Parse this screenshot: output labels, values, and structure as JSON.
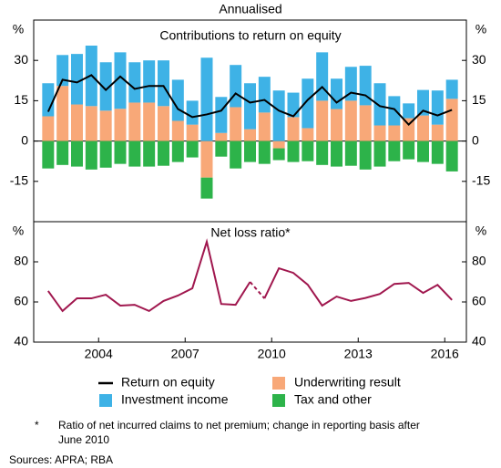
{
  "title": "Annualised",
  "y_unit": "%",
  "chart_data": [
    {
      "type": "bar",
      "title": "Contributions to return on equity",
      "stacked": true,
      "zero_line": true,
      "x": [
        2002.75,
        2003.25,
        2003.75,
        2004.25,
        2004.75,
        2005.25,
        2005.75,
        2006.25,
        2006.75,
        2007.25,
        2007.75,
        2008.25,
        2008.75,
        2009.25,
        2009.75,
        2010.25,
        2010.75,
        2011.25,
        2011.75,
        2012.25,
        2012.75,
        2013.25,
        2013.75,
        2014.25,
        2014.75,
        2015.25,
        2015.75,
        2016.25,
        2016.75
      ],
      "xlim": [
        2002.25,
        2017.25
      ],
      "xticks": [
        {
          "value": 2004.5,
          "label": "2004"
        },
        {
          "value": 2007.5,
          "label": "2007"
        },
        {
          "value": 2010.5,
          "label": "2010"
        },
        {
          "value": 2013.5,
          "label": "2013"
        },
        {
          "value": 2016.5,
          "label": "2016"
        }
      ],
      "ylim": [
        -30,
        45
      ],
      "yticks": [
        -15,
        0,
        15,
        30
      ],
      "series": [
        {
          "name": "Return on equity",
          "type": "line",
          "color": "#000000",
          "values": [
            10.9,
            22.8,
            21.8,
            24.5,
            19,
            24,
            19.4,
            20.5,
            20.5,
            11.9,
            8.9,
            9.9,
            11.3,
            17.7,
            14.3,
            15.3,
            11.3,
            9.2,
            15.3,
            20.1,
            14.3,
            18,
            17,
            13,
            11.9,
            6.1,
            11.3,
            9.5,
            11.6
          ]
        },
        {
          "name": "Underwriting result",
          "type": "bar",
          "color": "#f8a878",
          "values": [
            9.2,
            20.5,
            13.6,
            13,
            11.3,
            12,
            14.3,
            14.3,
            13,
            7.5,
            6.1,
            -13.6,
            3,
            12.6,
            4.4,
            10.6,
            -2.7,
            8.9,
            4.8,
            15,
            11.9,
            15,
            13.3,
            5.8,
            5.8,
            8.5,
            9.5,
            6.1,
            15.7
          ]
        },
        {
          "name": "Investment income",
          "type": "bar",
          "color": "#3eb2e6",
          "values": [
            12.3,
            11.5,
            18.8,
            22.5,
            18,
            21,
            15,
            15.7,
            17,
            15.3,
            8.9,
            31,
            13.4,
            15.7,
            17.1,
            13.3,
            18.8,
            9.1,
            18.4,
            18,
            11.3,
            12.6,
            14.7,
            15.7,
            10.9,
            5.5,
            9.5,
            12.7,
            7.1
          ]
        },
        {
          "name": "Tax and other",
          "type": "bar",
          "color": "#2db34a",
          "values": [
            -10.2,
            -8.9,
            -9.5,
            -10.6,
            -9.9,
            -8.5,
            -9.5,
            -9.5,
            -9.2,
            -7.8,
            -6.1,
            -7.8,
            -5.8,
            -10.2,
            -7.8,
            -8.5,
            -4.4,
            -7.8,
            -7.5,
            -8.9,
            -9.5,
            -9.2,
            -10.6,
            -9.5,
            -7.5,
            -6.8,
            -7.8,
            -8.5,
            -11.3
          ]
        }
      ]
    },
    {
      "type": "line",
      "title": "Net loss ratio*",
      "x": [
        2002.75,
        2003.25,
        2003.75,
        2004.25,
        2004.75,
        2005.25,
        2005.75,
        2006.25,
        2006.75,
        2007.25,
        2007.75,
        2008.25,
        2008.75,
        2009.25,
        2009.75,
        2010.25,
        2010.75,
        2011.25,
        2011.75,
        2012.25,
        2012.75,
        2013.25,
        2013.75,
        2014.25,
        2014.75,
        2015.25,
        2015.75,
        2016.25,
        2016.75
      ],
      "xlim": [
        2002.25,
        2017.25
      ],
      "xticks": [
        {
          "value": 2004.5,
          "label": "2004"
        },
        {
          "value": 2007.5,
          "label": "2007"
        },
        {
          "value": 2010.5,
          "label": "2010"
        },
        {
          "value": 2013.5,
          "label": "2013"
        },
        {
          "value": 2016.5,
          "label": "2016"
        }
      ],
      "ylim": [
        40,
        100
      ],
      "yticks": [
        40,
        60,
        80
      ],
      "series": [
        {
          "color": "#a0174e",
          "values": [
            65.5,
            55.5,
            61.8,
            61.8,
            63.6,
            58.2,
            58.6,
            55.5,
            60.5,
            63.2,
            66.8,
            90,
            59,
            58.6,
            70,
            61.8,
            76.8,
            74.5,
            68.6,
            58.2,
            62.7,
            60.5,
            62,
            64,
            69,
            69.5,
            64.5,
            68.5,
            61
          ]
        }
      ]
    }
  ],
  "footnote": {
    "marker": "*",
    "text": "Ratio of net incurred claims to net premium; change in reporting basis after June 2010"
  },
  "sources": "Sources: APRA; RBA"
}
